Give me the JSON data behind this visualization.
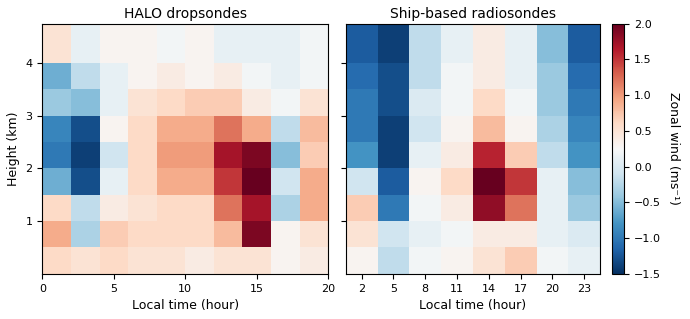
{
  "title_left": "HALO dropsondes",
  "title_right": "Ship-based radiosondes",
  "xlabel": "Local time (hour)",
  "ylabel": "Height (km)",
  "cbar_label": "Zonal wind (ms⁻¹)",
  "vmin": -1.5,
  "vmax": 2.0,
  "cmap": "RdBu_r",
  "left_xticks": [
    0,
    5,
    10,
    15,
    20
  ],
  "right_xticks": [
    2,
    5,
    8,
    11,
    14,
    17,
    20,
    23
  ],
  "yticks": [
    1,
    2,
    3,
    4
  ],
  "left_x_edges": [
    0,
    2,
    4,
    6,
    8,
    10,
    12,
    14,
    16,
    18,
    20
  ],
  "left_y_edges": [
    0.0,
    0.5,
    1.0,
    1.5,
    2.0,
    2.5,
    3.0,
    3.5,
    4.0,
    4.75
  ],
  "right_x_edges": [
    0.5,
    3.5,
    6.5,
    9.5,
    12.5,
    15.5,
    18.5,
    21.5,
    24.5
  ],
  "right_y_edges": [
    0.0,
    0.5,
    1.0,
    1.5,
    2.0,
    2.5,
    3.0,
    3.5,
    4.0,
    4.75
  ],
  "left_data": [
    [
      0.6,
      0.5,
      0.6,
      0.5,
      0.5,
      0.4,
      0.5,
      0.5,
      0.3,
      0.4
    ],
    [
      0.9,
      -0.3,
      0.7,
      0.6,
      0.6,
      0.6,
      0.8,
      1.9,
      0.3,
      0.5
    ],
    [
      0.6,
      -0.2,
      0.4,
      0.5,
      0.6,
      0.6,
      1.2,
      1.7,
      -0.3,
      0.9
    ],
    [
      -0.6,
      -1.3,
      0.1,
      0.6,
      0.9,
      0.9,
      1.5,
      2.0,
      -0.1,
      0.9
    ],
    [
      -1.0,
      -1.4,
      -0.1,
      0.6,
      1.0,
      1.0,
      1.7,
      1.9,
      -0.5,
      0.7
    ],
    [
      -0.9,
      -1.3,
      0.3,
      0.6,
      0.9,
      0.9,
      1.2,
      0.9,
      -0.2,
      0.8
    ],
    [
      -0.4,
      -0.5,
      0.1,
      0.5,
      0.6,
      0.7,
      0.7,
      0.4,
      0.2,
      0.5
    ],
    [
      -0.6,
      -0.2,
      0.1,
      0.3,
      0.4,
      0.3,
      0.4,
      0.2,
      0.1,
      0.2
    ],
    [
      0.5,
      0.1,
      0.3,
      0.3,
      0.2,
      0.3,
      0.1,
      0.1,
      0.1,
      0.2
    ]
  ],
  "right_data": [
    [
      0.3,
      -0.2,
      0.2,
      0.3,
      0.5,
      0.7,
      0.2,
      0.1
    ],
    [
      0.5,
      -0.1,
      0.1,
      0.2,
      0.4,
      0.4,
      0.1,
      0.0
    ],
    [
      0.7,
      -1.0,
      0.2,
      0.4,
      1.8,
      1.2,
      0.1,
      -0.4
    ],
    [
      -0.1,
      -1.2,
      0.3,
      0.6,
      2.0,
      1.5,
      0.1,
      -0.5
    ],
    [
      -0.8,
      -1.4,
      0.1,
      0.4,
      1.6,
      0.7,
      -0.2,
      -0.8
    ],
    [
      -1.0,
      -1.4,
      -0.1,
      0.3,
      0.8,
      0.3,
      -0.3,
      -0.9
    ],
    [
      -1.0,
      -1.3,
      0.0,
      0.2,
      0.6,
      0.2,
      -0.4,
      -1.0
    ],
    [
      -1.1,
      -1.3,
      -0.2,
      0.2,
      0.4,
      0.1,
      -0.4,
      -1.1
    ],
    [
      -1.2,
      -1.4,
      -0.2,
      0.1,
      0.4,
      0.1,
      -0.5,
      -1.2
    ]
  ]
}
